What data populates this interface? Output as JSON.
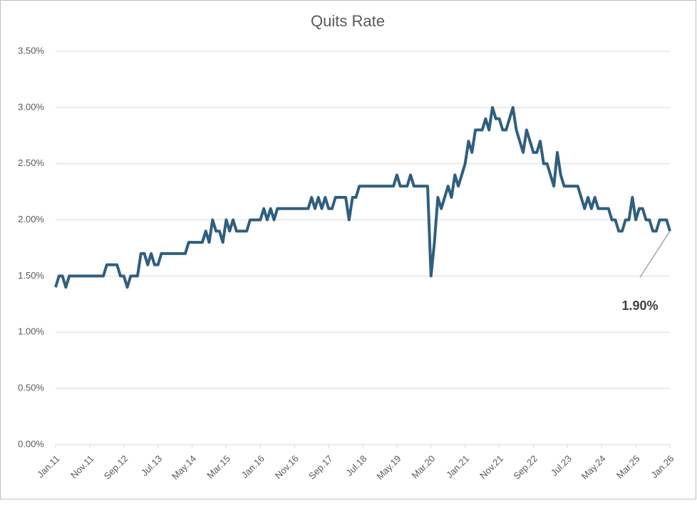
{
  "chart_data": {
    "type": "line",
    "title": "Quits Rate",
    "categories": [
      "Jan.11",
      null,
      null,
      null,
      null,
      null,
      null,
      null,
      null,
      null,
      "Nov.11",
      null,
      null,
      null,
      null,
      null,
      null,
      null,
      null,
      null,
      "Sep.12",
      null,
      null,
      null,
      null,
      null,
      null,
      null,
      null,
      null,
      "Jul.13",
      null,
      null,
      null,
      null,
      null,
      null,
      null,
      null,
      null,
      "May.14",
      null,
      null,
      null,
      null,
      null,
      null,
      null,
      null,
      null,
      "Mar.15",
      null,
      null,
      null,
      null,
      null,
      null,
      null,
      null,
      null,
      "Jan.16",
      null,
      null,
      null,
      null,
      null,
      null,
      null,
      null,
      null,
      "Nov.16",
      null,
      null,
      null,
      null,
      null,
      null,
      null,
      null,
      null,
      "Sep.17",
      null,
      null,
      null,
      null,
      null,
      null,
      null,
      null,
      null,
      "Jul.18",
      null,
      null,
      null,
      null,
      null,
      null,
      null,
      null,
      null,
      "May.19",
      null,
      null,
      null,
      null,
      null,
      null,
      null,
      null,
      null,
      "Mar.20",
      null,
      null,
      null,
      null,
      null,
      null,
      null,
      null,
      null,
      "Jan.21",
      null,
      null,
      null,
      null,
      null,
      null,
      null,
      null,
      null,
      "Nov.21",
      null,
      null,
      null,
      null,
      null,
      null,
      null,
      null,
      null,
      "Sep.22",
      null,
      null,
      null,
      null,
      null,
      null,
      null,
      null,
      null,
      "Jul.23",
      null,
      null,
      null,
      null,
      null,
      null,
      null,
      null,
      null,
      "May.24",
      null,
      null,
      null,
      null,
      null,
      null,
      null,
      null,
      null,
      "Mar.25",
      null,
      null,
      null,
      null,
      null,
      null,
      null,
      null,
      null,
      "Jan.26"
    ],
    "values": [
      1.4,
      1.5,
      1.5,
      1.4,
      1.5,
      1.5,
      1.5,
      1.5,
      1.5,
      1.5,
      1.5,
      1.5,
      1.5,
      1.5,
      1.5,
      1.6,
      1.6,
      1.6,
      1.6,
      1.5,
      1.5,
      1.4,
      1.5,
      1.5,
      1.5,
      1.7,
      1.7,
      1.6,
      1.7,
      1.6,
      1.6,
      1.7,
      1.7,
      1.7,
      1.7,
      1.7,
      1.7,
      1.7,
      1.7,
      1.8,
      1.8,
      1.8,
      1.8,
      1.8,
      1.9,
      1.8,
      2.0,
      1.9,
      1.9,
      1.8,
      2.0,
      1.9,
      2.0,
      1.9,
      1.9,
      1.9,
      1.9,
      2.0,
      2.0,
      2.0,
      2.0,
      2.1,
      2.0,
      2.1,
      2.0,
      2.1,
      2.1,
      2.1,
      2.1,
      2.1,
      2.1,
      2.1,
      2.1,
      2.1,
      2.1,
      2.2,
      2.1,
      2.2,
      2.1,
      2.2,
      2.1,
      2.1,
      2.2,
      2.2,
      2.2,
      2.2,
      2.0,
      2.2,
      2.2,
      2.3,
      2.3,
      2.3,
      2.3,
      2.3,
      2.3,
      2.3,
      2.3,
      2.3,
      2.3,
      2.3,
      2.4,
      2.3,
      2.3,
      2.3,
      2.4,
      2.3,
      2.3,
      2.3,
      2.3,
      2.3,
      1.5,
      1.8,
      2.2,
      2.1,
      2.2,
      2.3,
      2.2,
      2.4,
      2.3,
      2.4,
      2.5,
      2.7,
      2.6,
      2.8,
      2.8,
      2.8,
      2.9,
      2.8,
      3.0,
      2.9,
      2.9,
      2.8,
      2.8,
      2.9,
      3.0,
      2.8,
      2.7,
      2.6,
      2.8,
      2.7,
      2.6,
      2.6,
      2.7,
      2.5,
      2.5,
      2.4,
      2.3,
      2.6,
      2.4,
      2.3,
      2.3,
      2.3,
      2.3,
      2.3,
      2.2,
      2.1,
      2.2,
      2.1,
      2.2,
      2.1,
      2.1,
      2.1,
      2.1,
      2.0,
      2.0,
      1.9,
      1.9,
      2.0,
      2.0,
      2.2,
      2.0,
      2.1,
      2.1,
      2.0,
      2.0,
      1.9,
      1.9,
      2.0,
      2.0,
      2.0,
      1.9
    ],
    "color": "#2f5f80",
    "ylim": [
      0,
      3.5
    ],
    "yticks": [
      {
        "value": 0,
        "label": "0.00%"
      },
      {
        "value": 0.5,
        "label": "0.50%"
      },
      {
        "value": 1,
        "label": "1.00%"
      },
      {
        "value": 1.5,
        "label": "1.50%"
      },
      {
        "value": 2,
        "label": "2.00%"
      },
      {
        "value": 2.5,
        "label": "2.50%"
      },
      {
        "value": 3,
        "label": "3.00%"
      },
      {
        "value": 3.5,
        "label": "3.50%"
      }
    ],
    "grid": true,
    "annotation": "1.90%"
  }
}
